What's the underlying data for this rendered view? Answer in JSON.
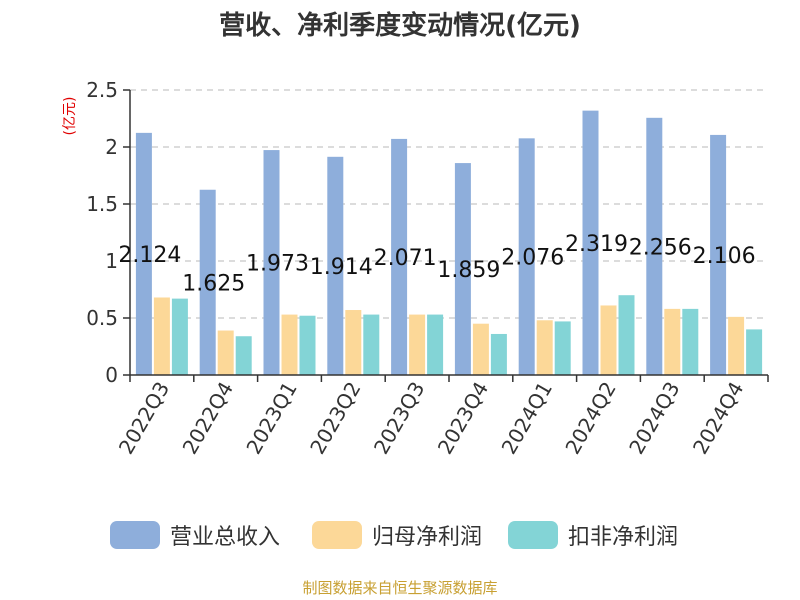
{
  "chart_data": {
    "type": "bar",
    "title": "营收、净利季度变动情况(亿元)",
    "ylabel": "(亿元)",
    "xlabel": "",
    "ylim": [
      0,
      2.5
    ],
    "yticks": [
      0,
      0.5,
      1,
      1.5,
      2,
      2.5
    ],
    "grid": true,
    "legend_position": "bottom",
    "categories": [
      "2022Q3",
      "2022Q4",
      "2023Q1",
      "2023Q2",
      "2023Q3",
      "2023Q4",
      "2024Q1",
      "2024Q2",
      "2024Q3",
      "2024Q4"
    ],
    "series": [
      {
        "name": "营业总收入",
        "color": "#8eaedb",
        "values": [
          2.124,
          1.625,
          1.973,
          1.914,
          2.071,
          1.859,
          2.076,
          2.319,
          2.256,
          2.106
        ],
        "labels": [
          "2.124",
          "1.625",
          "1.973",
          "1.914",
          "2.071",
          "1.859",
          "2.076",
          "2.319",
          "2.256",
          "2.106"
        ]
      },
      {
        "name": "归母净利润",
        "color": "#fcd898",
        "values": [
          0.68,
          0.39,
          0.53,
          0.57,
          0.53,
          0.45,
          0.48,
          0.61,
          0.58,
          0.51
        ]
      },
      {
        "name": "扣非净利润",
        "color": "#83d4d6",
        "values": [
          0.67,
          0.34,
          0.52,
          0.53,
          0.53,
          0.36,
          0.47,
          0.7,
          0.58,
          0.4
        ]
      }
    ],
    "source": "制图数据来自恒生聚源数据库"
  }
}
